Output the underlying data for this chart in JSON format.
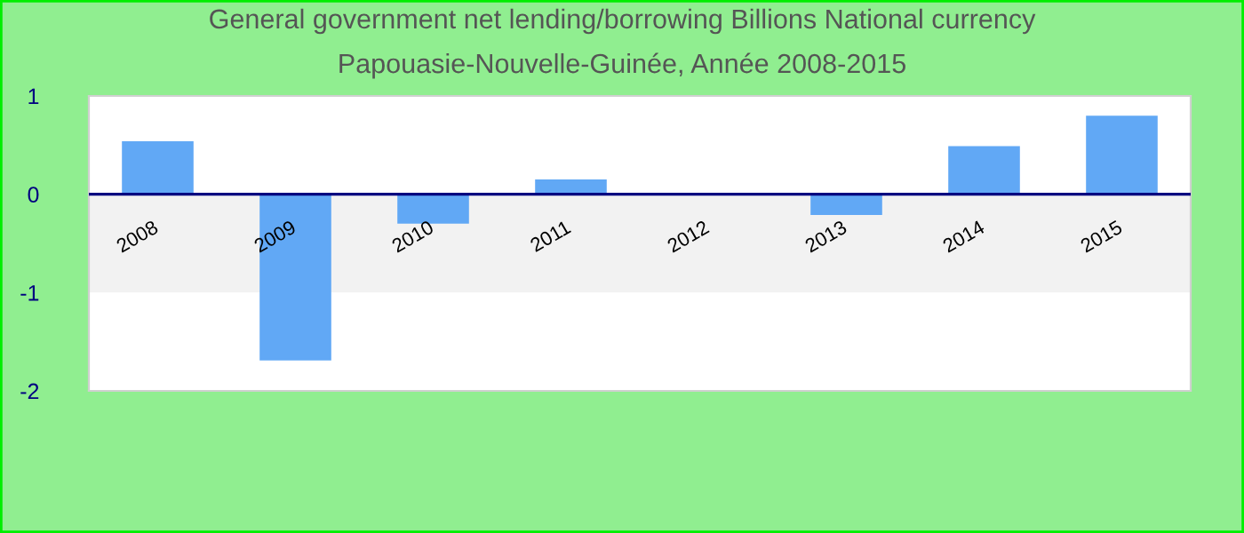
{
  "chart_data": {
    "type": "bar",
    "title": "General government net lending/borrowing Billions National currency",
    "subtitle": "Papouasie-Nouvelle-Guinée, Année 2008-2015",
    "categories": [
      "2008",
      "2009",
      "2010",
      "2011",
      "2012",
      "2013",
      "2014",
      "2015"
    ],
    "values": [
      0.54,
      -1.69,
      -0.3,
      0.15,
      0,
      -0.21,
      0.49,
      0.8
    ],
    "color": "#61a8f5",
    "ylim": [
      -2,
      1
    ],
    "yticks": [
      -2,
      -1,
      0,
      1
    ],
    "bands": [
      {
        "axis": "y",
        "from": -1,
        "to": 0,
        "color": "#f2f2f2"
      }
    ],
    "grid": false,
    "legend": false
  }
}
